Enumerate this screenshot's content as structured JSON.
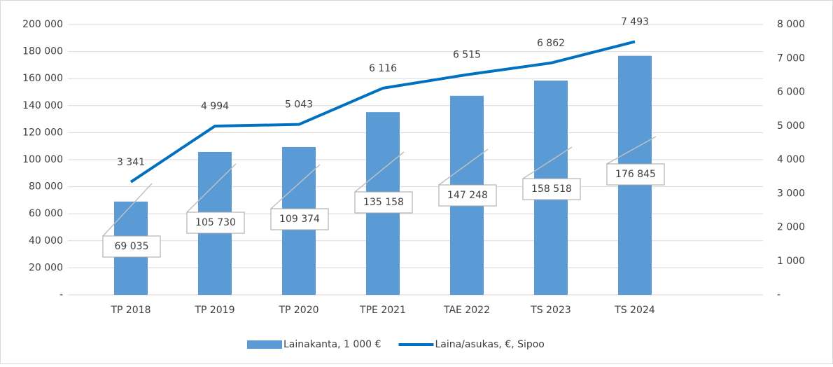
{
  "chart_data": {
    "type": "bar+line",
    "categories": [
      "TP 2018",
      "TP 2019",
      "TP 2020",
      "TPE 2021",
      "TAE 2022",
      "TS 2023",
      "TS 2024"
    ],
    "series": [
      {
        "name": "Lainakanta, 1 000 €",
        "type": "bar",
        "color": "#5b9bd5",
        "axis": "y",
        "values": [
          69035,
          105730,
          109374,
          135158,
          147248,
          158518,
          176845
        ],
        "value_labels": [
          "69 035",
          "105 730",
          "109 374",
          "135 158",
          "147 248",
          "158 518",
          "176 845"
        ]
      },
      {
        "name": "Laina/asukas, €, Sipoo",
        "type": "line",
        "color": "#0070c0",
        "axis": "y2",
        "values": [
          3341,
          4994,
          5043,
          6116,
          6515,
          6862,
          7493
        ],
        "value_labels": [
          "3 341",
          "4 994",
          "5 043",
          "6 116",
          "6 515",
          "6 862",
          "7 493"
        ]
      }
    ],
    "ylim": [
      0,
      200000
    ],
    "yticks": [
      {
        "value": 0,
        "label": "-"
      },
      {
        "value": 20000,
        "label": "20 000"
      },
      {
        "value": 40000,
        "label": "40 000"
      },
      {
        "value": 60000,
        "label": "60 000"
      },
      {
        "value": 80000,
        "label": "80 000"
      },
      {
        "value": 100000,
        "label": "100 000"
      },
      {
        "value": 120000,
        "label": "120 000"
      },
      {
        "value": 140000,
        "label": "140 000"
      },
      {
        "value": 160000,
        "label": "160 000"
      },
      {
        "value": 180000,
        "label": "180 000"
      },
      {
        "value": 200000,
        "label": "200 000"
      }
    ],
    "y2lim": [
      0,
      8000
    ],
    "y2ticks": [
      {
        "value": 0,
        "label": "-"
      },
      {
        "value": 1000,
        "label": "1 000"
      },
      {
        "value": 2000,
        "label": "2 000"
      },
      {
        "value": 3000,
        "label": "3 000"
      },
      {
        "value": 4000,
        "label": "4 000"
      },
      {
        "value": 5000,
        "label": "5 000"
      },
      {
        "value": 6000,
        "label": "6 000"
      },
      {
        "value": 7000,
        "label": "7 000"
      },
      {
        "value": 8000,
        "label": "8 000"
      }
    ],
    "grid": true,
    "legend": "bottom"
  }
}
